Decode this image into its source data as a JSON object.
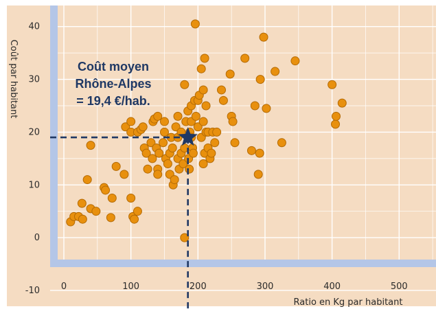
{
  "chart_data": {
    "type": "scatter",
    "xlabel": "Ratio en Kg par habitant",
    "ylabel": "Coût par habitant",
    "xlim": [
      -85,
      555
    ],
    "ylim": [
      -13,
      44
    ],
    "x_ticks": [
      "0",
      "100",
      "200",
      "300",
      "400",
      "500"
    ],
    "x_tick_values": [
      0,
      100,
      200,
      300,
      400,
      500
    ],
    "y_ticks": [
      "40",
      "30",
      "20",
      "10",
      "0",
      "-10"
    ],
    "y_tick_values": [
      40,
      30,
      20,
      10,
      0,
      -10
    ],
    "grid": true,
    "annotation": {
      "lines": [
        "Coût moyen",
        "Rhône-Alpes",
        "= 19,4 €/hab."
      ],
      "reference_point": {
        "x": 185,
        "y": 19
      }
    },
    "colors": {
      "plot_background": "#f5dcc2",
      "grid": "#ffffff",
      "axis_band": "#b4c6e7",
      "point_fill": "#e8900e",
      "point_edge": "#b36a05",
      "reference": "#1f3864"
    },
    "series": [
      {
        "points": [
          [
            10,
            3
          ],
          [
            15,
            4
          ],
          [
            22,
            4
          ],
          [
            28,
            3.5
          ],
          [
            27,
            6.5
          ],
          [
            40,
            5.5
          ],
          [
            48,
            5
          ],
          [
            35,
            11
          ],
          [
            40,
            17.5
          ],
          [
            60,
            9.5
          ],
          [
            62,
            9
          ],
          [
            70,
            3.8
          ],
          [
            72,
            7.5
          ],
          [
            78,
            13.5
          ],
          [
            90,
            12
          ],
          [
            100,
            7.5
          ],
          [
            103,
            4
          ],
          [
            110,
            5
          ],
          [
            105,
            3.5
          ],
          [
            92,
            21
          ],
          [
            100,
            22
          ],
          [
            100,
            20
          ],
          [
            110,
            20
          ],
          [
            115,
            20.5
          ],
          [
            118,
            21
          ],
          [
            120,
            17
          ],
          [
            123,
            16
          ],
          [
            125,
            13
          ],
          [
            130,
            18
          ],
          [
            132,
            15
          ],
          [
            133,
            22
          ],
          [
            135,
            22.5
          ],
          [
            138,
            17
          ],
          [
            140,
            23
          ],
          [
            140,
            13
          ],
          [
            140,
            12
          ],
          [
            142,
            16
          ],
          [
            148,
            18
          ],
          [
            150,
            20
          ],
          [
            150,
            22
          ],
          [
            152,
            15
          ],
          [
            155,
            14
          ],
          [
            158,
            12
          ],
          [
            158,
            16
          ],
          [
            160,
            19
          ],
          [
            162,
            17
          ],
          [
            163,
            10
          ],
          [
            165,
            11
          ],
          [
            167,
            21
          ],
          [
            170,
            15
          ],
          [
            170,
            19
          ],
          [
            170,
            23
          ],
          [
            172,
            13
          ],
          [
            175,
            16
          ],
          [
            175,
            20
          ],
          [
            178,
            14
          ],
          [
            180,
            29
          ],
          [
            180,
            17
          ],
          [
            180,
            0
          ],
          [
            182,
            22
          ],
          [
            185,
            24
          ],
          [
            186,
            15
          ],
          [
            187,
            13
          ],
          [
            188,
            20
          ],
          [
            190,
            22
          ],
          [
            190,
            25
          ],
          [
            190,
            19
          ],
          [
            192,
            17
          ],
          [
            193,
            16
          ],
          [
            195,
            26
          ],
          [
            196,
            40.5
          ],
          [
            197,
            23
          ],
          [
            200,
            26
          ],
          [
            200,
            21
          ],
          [
            202,
            27
          ],
          [
            205,
            32
          ],
          [
            205,
            19
          ],
          [
            208,
            22
          ],
          [
            208,
            28
          ],
          [
            208,
            14
          ],
          [
            210,
            34
          ],
          [
            210,
            16
          ],
          [
            212,
            20
          ],
          [
            212,
            25
          ],
          [
            215,
            17
          ],
          [
            215,
            20
          ],
          [
            218,
            15
          ],
          [
            220,
            16
          ],
          [
            222,
            20
          ],
          [
            225,
            18
          ],
          [
            228,
            20
          ],
          [
            235,
            28
          ],
          [
            238,
            26
          ],
          [
            248,
            31
          ],
          [
            250,
            23
          ],
          [
            252,
            22
          ],
          [
            255,
            18
          ],
          [
            270,
            34
          ],
          [
            280,
            16.5
          ],
          [
            285,
            25
          ],
          [
            290,
            12
          ],
          [
            292,
            16
          ],
          [
            293,
            30
          ],
          [
            298,
            38
          ],
          [
            302,
            24.5
          ],
          [
            315,
            31.5
          ],
          [
            325,
            18
          ],
          [
            345,
            33.5
          ],
          [
            400,
            29
          ],
          [
            405,
            21.5
          ],
          [
            406,
            23
          ],
          [
            415,
            25.5
          ]
        ]
      }
    ]
  }
}
